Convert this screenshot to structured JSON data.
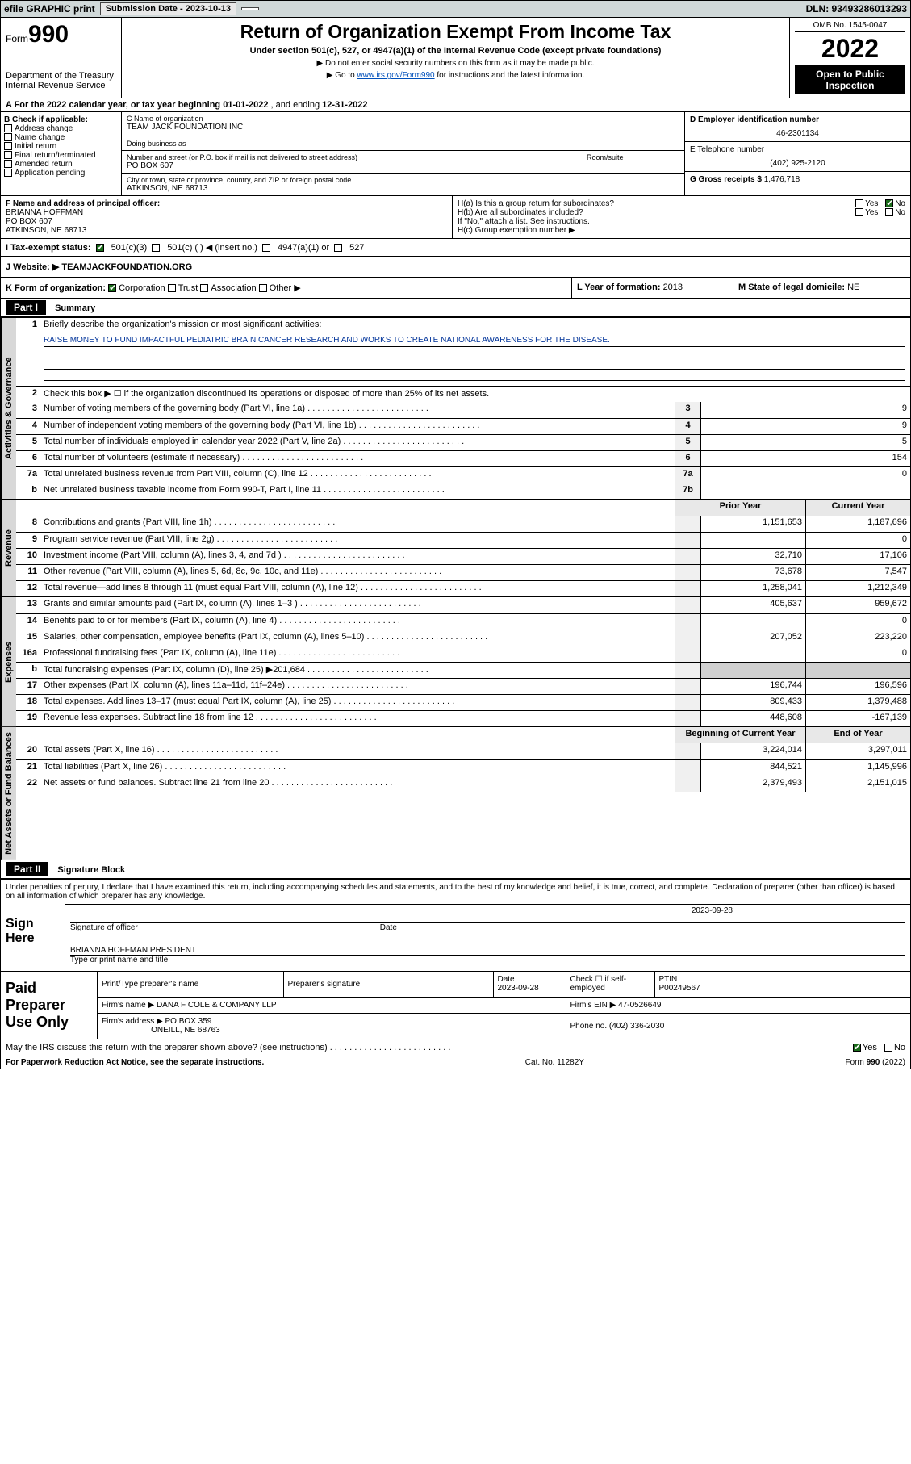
{
  "topbar": {
    "efile": "efile GRAPHIC print",
    "submission_label": "Submission Date - 2023-10-13",
    "dln": "DLN: 93493286013293"
  },
  "header": {
    "form_word": "Form",
    "form_num": "990",
    "dept": "Department of the Treasury",
    "irs": "Internal Revenue Service",
    "title": "Return of Organization Exempt From Income Tax",
    "sub": "Under section 501(c), 527, or 4947(a)(1) of the Internal Revenue Code (except private foundations)",
    "sub2a": "▶ Do not enter social security numbers on this form as it may be made public.",
    "sub2b_pre": "▶ Go to ",
    "sub2b_link": "www.irs.gov/Form990",
    "sub2b_post": " for instructions and the latest information.",
    "omb": "OMB No. 1545-0047",
    "year": "2022",
    "open": "Open to Public Inspection"
  },
  "row_a": {
    "label": "A For the 2022 calendar year, or tax year beginning ",
    "begin": "01-01-2022",
    "mid": " , and ending ",
    "end": "12-31-2022"
  },
  "col_b": {
    "title": "B Check if applicable:",
    "items": [
      "Address change",
      "Name change",
      "Initial return",
      "Final return/terminated",
      "Amended return",
      "Application pending"
    ]
  },
  "col_c": {
    "name_label": "C Name of organization",
    "name": "TEAM JACK FOUNDATION INC",
    "dba_label": "Doing business as",
    "dba": "",
    "addr_label": "Number and street (or P.O. box if mail is not delivered to street address)",
    "room_label": "Room/suite",
    "addr": "PO BOX 607",
    "city_label": "City or town, state or province, country, and ZIP or foreign postal code",
    "city": "ATKINSON, NE  68713"
  },
  "col_d": {
    "ein_label": "D Employer identification number",
    "ein": "46-2301134",
    "tel_label": "E Telephone number",
    "tel": "(402) 925-2120",
    "gross_label": "G Gross receipts $ ",
    "gross": "1,476,718"
  },
  "block_f": {
    "f_label": "F Name and address of principal officer:",
    "f_name": "BRIANNA HOFFMAN",
    "f_addr1": "PO BOX 607",
    "f_addr2": "ATKINSON, NE  68713",
    "h_a": "H(a)  Is this a group return for subordinates?",
    "h_b": "H(b)  Are all subordinates included?",
    "h_b2": "If \"No,\" attach a list. See instructions.",
    "h_c": "H(c)  Group exemption number ▶",
    "yes": "Yes",
    "no": "No"
  },
  "row_i": {
    "label": "I  Tax-exempt status:",
    "opt1": "501(c)(3)",
    "opt2": "501(c) (   ) ◀ (insert no.)",
    "opt3": "4947(a)(1) or",
    "opt4": "527"
  },
  "row_j": {
    "label": "J  Website: ▶",
    "value": "TEAMJACKFOUNDATION.ORG"
  },
  "row_k": {
    "label": "K Form of organization:",
    "opts": [
      "Corporation",
      "Trust",
      "Association",
      "Other ▶"
    ],
    "l_label": "L Year of formation: ",
    "l_val": "2013",
    "m_label": "M State of legal domicile: ",
    "m_val": "NE"
  },
  "part1": {
    "hdr": "Part I",
    "title": "Summary",
    "q1": "Briefly describe the organization's mission or most significant activities:",
    "mission": "RAISE MONEY TO FUND IMPACTFUL PEDIATRIC BRAIN CANCER RESEARCH AND WORKS TO CREATE NATIONAL AWARENESS FOR THE DISEASE.",
    "q2": "Check this box ▶ ☐  if the organization discontinued its operations or disposed of more than 25% of its net assets."
  },
  "gov_lines": [
    {
      "n": "3",
      "t": "Number of voting members of the governing body (Part VI, line 1a)",
      "box": "3",
      "v": "9"
    },
    {
      "n": "4",
      "t": "Number of independent voting members of the governing body (Part VI, line 1b)",
      "box": "4",
      "v": "9"
    },
    {
      "n": "5",
      "t": "Total number of individuals employed in calendar year 2022 (Part V, line 2a)",
      "box": "5",
      "v": "5"
    },
    {
      "n": "6",
      "t": "Total number of volunteers (estimate if necessary)",
      "box": "6",
      "v": "154"
    },
    {
      "n": "7a",
      "t": "Total unrelated business revenue from Part VIII, column (C), line 12",
      "box": "7a",
      "v": "0"
    },
    {
      "n": "b",
      "t": "Net unrelated business taxable income from Form 990-T, Part I, line 11",
      "box": "7b",
      "v": ""
    }
  ],
  "pycy_hdr": {
    "py": "Prior Year",
    "cy": "Current Year"
  },
  "rev_lines": [
    {
      "n": "8",
      "t": "Contributions and grants (Part VIII, line 1h)",
      "py": "1,151,653",
      "cy": "1,187,696"
    },
    {
      "n": "9",
      "t": "Program service revenue (Part VIII, line 2g)",
      "py": "",
      "cy": "0"
    },
    {
      "n": "10",
      "t": "Investment income (Part VIII, column (A), lines 3, 4, and 7d )",
      "py": "32,710",
      "cy": "17,106"
    },
    {
      "n": "11",
      "t": "Other revenue (Part VIII, column (A), lines 5, 6d, 8c, 9c, 10c, and 11e)",
      "py": "73,678",
      "cy": "7,547"
    },
    {
      "n": "12",
      "t": "Total revenue—add lines 8 through 11 (must equal Part VIII, column (A), line 12)",
      "py": "1,258,041",
      "cy": "1,212,349"
    }
  ],
  "exp_lines": [
    {
      "n": "13",
      "t": "Grants and similar amounts paid (Part IX, column (A), lines 1–3 )",
      "py": "405,637",
      "cy": "959,672"
    },
    {
      "n": "14",
      "t": "Benefits paid to or for members (Part IX, column (A), line 4)",
      "py": "",
      "cy": "0"
    },
    {
      "n": "15",
      "t": "Salaries, other compensation, employee benefits (Part IX, column (A), lines 5–10)",
      "py": "207,052",
      "cy": "223,220"
    },
    {
      "n": "16a",
      "t": "Professional fundraising fees (Part IX, column (A), line 11e)",
      "py": "",
      "cy": "0"
    },
    {
      "n": "b",
      "t": "Total fundraising expenses (Part IX, column (D), line 25) ▶201,684",
      "py": "__noval__",
      "cy": "__noval__"
    },
    {
      "n": "17",
      "t": "Other expenses (Part IX, column (A), lines 11a–11d, 11f–24e)",
      "py": "196,744",
      "cy": "196,596"
    },
    {
      "n": "18",
      "t": "Total expenses. Add lines 13–17 (must equal Part IX, column (A), line 25)",
      "py": "809,433",
      "cy": "1,379,488"
    },
    {
      "n": "19",
      "t": "Revenue less expenses. Subtract line 18 from line 12",
      "py": "448,608",
      "cy": "-167,139"
    }
  ],
  "na_hdr": {
    "py": "Beginning of Current Year",
    "cy": "End of Year"
  },
  "na_lines": [
    {
      "n": "20",
      "t": "Total assets (Part X, line 16)",
      "py": "3,224,014",
      "cy": "3,297,011"
    },
    {
      "n": "21",
      "t": "Total liabilities (Part X, line 26)",
      "py": "844,521",
      "cy": "1,145,996"
    },
    {
      "n": "22",
      "t": "Net assets or fund balances. Subtract line 21 from line 20",
      "py": "2,379,493",
      "cy": "2,151,015"
    }
  ],
  "part2": {
    "hdr": "Part II",
    "title": "Signature Block",
    "decl": "Under penalties of perjury, I declare that I have examined this return, including accompanying schedules and statements, and to the best of my knowledge and belief, it is true, correct, and complete. Declaration of preparer (other than officer) is based on all information of which preparer has any knowledge.",
    "sign_here": "Sign Here",
    "sig_officer": "Signature of officer",
    "sig_date_lbl": "Date",
    "sig_date": "2023-09-28",
    "officer_name": "BRIANNA HOFFMAN  PRESIDENT",
    "officer_lbl": "Type or print name and title"
  },
  "prep": {
    "hdr": "Paid Preparer Use Only",
    "c1": "Print/Type preparer's name",
    "c2": "Preparer's signature",
    "c3_lbl": "Date",
    "c3": "2023-09-28",
    "c4_lbl": "Check ☐ if self-employed",
    "c5_lbl": "PTIN",
    "c5": "P00249567",
    "firm_name_lbl": "Firm's name   ▶",
    "firm_name": "DANA F COLE & COMPANY LLP",
    "firm_ein_lbl": "Firm's EIN ▶",
    "firm_ein": "47-0526649",
    "firm_addr_lbl": "Firm's address ▶",
    "firm_addr1": "PO BOX 359",
    "firm_addr2": "ONEILL, NE  68763",
    "phone_lbl": "Phone no.",
    "phone": "(402) 336-2030"
  },
  "may_irs": {
    "q": "May the IRS discuss this return with the preparer shown above? (see instructions)",
    "yes": "Yes",
    "no": "No"
  },
  "footer": {
    "l": "For Paperwork Reduction Act Notice, see the separate instructions.",
    "m": "Cat. No. 11282Y",
    "r": "Form 990 (2022)"
  },
  "side_labels": {
    "gov": "Activities & Governance",
    "rev": "Revenue",
    "exp": "Expenses",
    "na": "Net Assets or Fund Balances"
  }
}
